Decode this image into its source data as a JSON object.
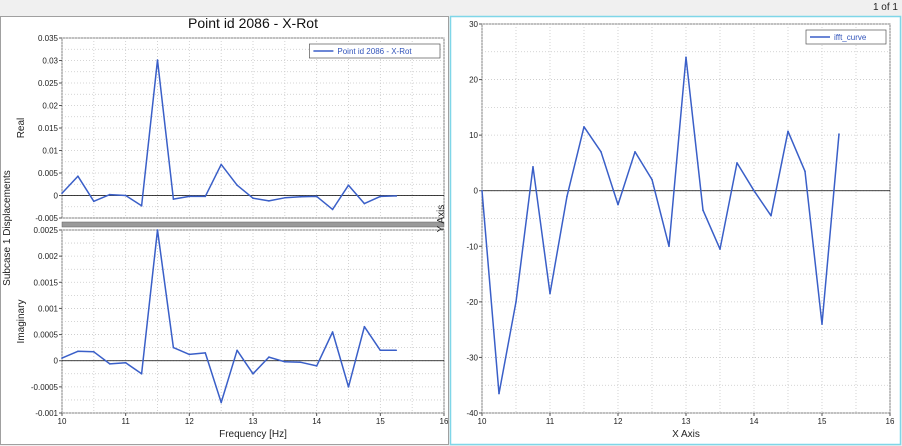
{
  "page_indicator": "1 of 1",
  "colors": {
    "series": "#3a5fc8",
    "grid": "#c8c8c8",
    "frame_active": "#7fd6e8",
    "zero_line": "#000000"
  },
  "chart_data": [
    {
      "type": "line",
      "panel": "left-top",
      "title": "Point id 2086 - X-Rot",
      "ylabel": "Real",
      "shared_ylabel": "Subcase 1 Displacements",
      "xlim": [
        10,
        16
      ],
      "ylim": [
        -0.005,
        0.035
      ],
      "yticks": [
        "0.035",
        "0.03",
        "0.025",
        "0.02",
        "0.015",
        "0.01",
        "0.005",
        "0",
        "-0.005"
      ],
      "legend": "Point id 2086 - X-Rot",
      "legend_position": "top-right",
      "grid": true,
      "series": [
        {
          "name": "Point id 2086 - X-Rot",
          "x": [
            10,
            10.25,
            10.5,
            10.75,
            11,
            11.25,
            11.5,
            11.75,
            12,
            12.25,
            12.5,
            12.75,
            13,
            13.25,
            13.5,
            13.75,
            14,
            14.25,
            14.5,
            14.75,
            15,
            15.25
          ],
          "y": [
            0.0005,
            0.0043,
            -0.0013,
            0.0002,
            0,
            -0.0023,
            0.0301,
            -0.0008,
            -0.0002,
            -0.0002,
            0.0069,
            0.0023,
            -0.0006,
            -0.0012,
            -0.0005,
            -0.0003,
            -0.0002,
            -0.0031,
            0.0023,
            -0.0018,
            -0.0002,
            -0.0001
          ]
        }
      ]
    },
    {
      "type": "line",
      "panel": "left-bottom",
      "ylabel": "Imaginary",
      "xlabel": "Frequency [Hz]",
      "xlim": [
        10,
        16
      ],
      "ylim": [
        -0.001,
        0.0025
      ],
      "xticks": [
        "10",
        "11",
        "12",
        "13",
        "14",
        "15",
        "16"
      ],
      "yticks": [
        "0.0025",
        "0.002",
        "0.0015",
        "0.001",
        "0.0005",
        "0",
        "-0.0005",
        "-0.001"
      ],
      "grid": true,
      "series": [
        {
          "name": "Point id 2086 - X-Rot",
          "x": [
            10,
            10.25,
            10.5,
            10.75,
            11,
            11.25,
            11.5,
            11.75,
            12,
            12.25,
            12.5,
            12.75,
            13,
            13.25,
            13.5,
            13.75,
            14,
            14.25,
            14.5,
            14.75,
            15,
            15.25
          ],
          "y": [
            5e-05,
            0.00018,
            0.00017,
            -6e-05,
            -4e-05,
            -0.00025,
            0.0025,
            0.00025,
            0.00012,
            0.00015,
            -0.0008,
            0.0002,
            -0.00025,
            7e-05,
            -2e-05,
            -3e-05,
            -0.0001,
            0.00055,
            -0.0005,
            0.00065,
            0.0002,
            0.0002
          ]
        }
      ]
    },
    {
      "type": "line",
      "panel": "right",
      "xlabel": "X Axis",
      "ylabel": "Y Axis",
      "xlim": [
        10,
        16
      ],
      "ylim": [
        -40,
        30
      ],
      "xticks": [
        "10",
        "11",
        "12",
        "13",
        "14",
        "15",
        "16"
      ],
      "yticks": [
        "30",
        "20",
        "10",
        "0",
        "-10",
        "-20",
        "-30",
        "-40"
      ],
      "legend": "ifft_curve",
      "legend_position": "top-right",
      "grid": true,
      "series": [
        {
          "name": "ifft_curve",
          "x": [
            10,
            10.25,
            10.5,
            10.75,
            11,
            11.25,
            11.5,
            11.75,
            12,
            12.25,
            12.5,
            12.75,
            13,
            13.25,
            13.5,
            13.75,
            14,
            14.25,
            14.5,
            14.75,
            15,
            15.25
          ],
          "y": [
            0,
            -36.5,
            -20,
            4.3,
            -18.5,
            -1,
            11.5,
            7,
            -2.5,
            7,
            2,
            -10,
            24,
            -3.5,
            -10.5,
            5,
            0,
            -4.5,
            10.7,
            3.5,
            -24,
            10.2
          ]
        }
      ]
    }
  ]
}
